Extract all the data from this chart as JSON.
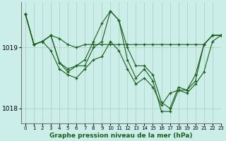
{
  "title": "Graphe pression niveau de la mer (hPa)",
  "background_color": "#cceee8",
  "grid_color": "#b0c8c4",
  "line_color": "#1a5c1a",
  "marker_color": "#1a5c1a",
  "xlim": [
    -0.5,
    23
  ],
  "ylim": [
    1017.75,
    1019.75
  ],
  "yticks": [
    1018,
    1019
  ],
  "xticks": [
    0,
    1,
    2,
    3,
    4,
    5,
    6,
    7,
    8,
    9,
    10,
    11,
    12,
    13,
    14,
    15,
    16,
    17,
    18,
    19,
    20,
    21,
    22,
    23
  ],
  "series": [
    [
      1019.55,
      1019.05,
      1019.1,
      1019.2,
      1019.15,
      1019.05,
      1019.0,
      1019.05,
      1019.05,
      1019.05,
      1019.05,
      1019.05,
      1019.05,
      1019.05,
      1019.05,
      1019.05,
      1019.05,
      1019.05,
      1019.05,
      1019.05,
      1019.05,
      1019.05,
      1019.2,
      1019.2
    ],
    [
      1019.55,
      1019.05,
      1019.1,
      1019.2,
      1018.75,
      1018.65,
      1018.7,
      1018.8,
      1019.1,
      1019.4,
      1019.6,
      1019.45,
      1019.0,
      1018.7,
      1018.7,
      1018.55,
      1018.1,
      1018.0,
      1018.35,
      1018.3,
      1018.55,
      1019.05,
      1019.2,
      1019.2
    ],
    [
      1019.55,
      1019.05,
      1019.1,
      1019.2,
      1018.75,
      1018.6,
      1018.7,
      1018.7,
      1019.0,
      1019.1,
      1019.6,
      1019.45,
      1018.8,
      1018.5,
      1018.65,
      1018.45,
      1017.95,
      1017.95,
      1018.3,
      1018.3,
      1018.45,
      1019.05,
      1019.2,
      1019.2
    ],
    [
      1019.55,
      1019.05,
      1019.1,
      1018.95,
      1018.65,
      1018.55,
      1018.5,
      1018.65,
      1018.8,
      1018.85,
      1019.1,
      1018.95,
      1018.65,
      1018.4,
      1018.5,
      1018.35,
      1018.05,
      1018.25,
      1018.3,
      1018.25,
      1018.4,
      1018.6,
      1019.1,
      1019.2
    ]
  ]
}
